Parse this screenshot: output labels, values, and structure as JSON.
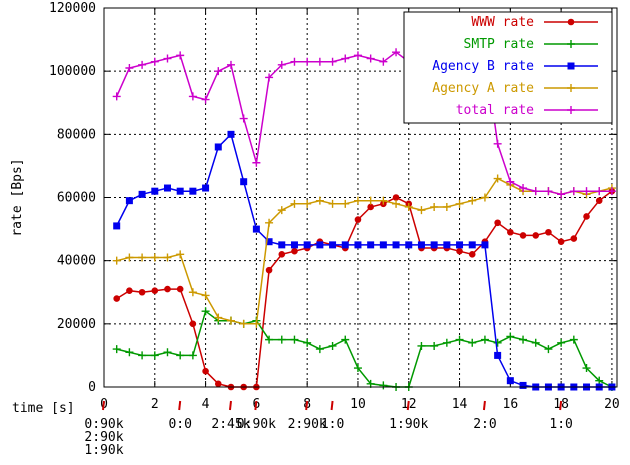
{
  "chart_data": {
    "type": "line",
    "xlabel": "time [s]",
    "ylabel": "rate [Bps]",
    "xlim": [
      0,
      20.2
    ],
    "ylim": [
      0,
      120000
    ],
    "x_ticks": [
      0,
      2,
      4,
      6,
      8,
      10,
      12,
      14,
      16,
      18,
      20
    ],
    "y_ticks": [
      0,
      20000,
      40000,
      60000,
      80000,
      100000,
      120000
    ],
    "grid": true,
    "legend_position": "top-right",
    "series": [
      {
        "name": "WWW rate",
        "color": "#cc0000",
        "marker": "circle",
        "points": [
          [
            0.5,
            28000
          ],
          [
            1,
            30500
          ],
          [
            1.5,
            30000
          ],
          [
            2,
            30500
          ],
          [
            2.5,
            31000
          ],
          [
            3,
            31000
          ],
          [
            3.5,
            20000
          ],
          [
            4,
            5000
          ],
          [
            4.5,
            1000
          ],
          [
            5,
            0
          ],
          [
            5.5,
            0
          ],
          [
            6,
            0
          ],
          [
            6.5,
            37000
          ],
          [
            7,
            42000
          ],
          [
            7.5,
            43000
          ],
          [
            8,
            44000
          ],
          [
            8.5,
            46000
          ],
          [
            9,
            45000
          ],
          [
            9.5,
            44000
          ],
          [
            10,
            53000
          ],
          [
            10.5,
            57000
          ],
          [
            11,
            58000
          ],
          [
            11.5,
            60000
          ],
          [
            12,
            58000
          ],
          [
            12.5,
            44000
          ],
          [
            13,
            44000
          ],
          [
            13.5,
            44000
          ],
          [
            14,
            43000
          ],
          [
            14.5,
            42000
          ],
          [
            15,
            46000
          ],
          [
            15.5,
            52000
          ],
          [
            16,
            49000
          ],
          [
            16.5,
            48000
          ],
          [
            17,
            48000
          ],
          [
            17.5,
            49000
          ],
          [
            18,
            46000
          ],
          [
            18.5,
            47000
          ],
          [
            19,
            54000
          ],
          [
            19.5,
            59000
          ],
          [
            20,
            62000
          ]
        ]
      },
      {
        "name": "SMTP rate",
        "color": "#009900",
        "marker": "plus",
        "points": [
          [
            0.5,
            12000
          ],
          [
            1,
            11000
          ],
          [
            1.5,
            10000
          ],
          [
            2,
            10000
          ],
          [
            2.5,
            11000
          ],
          [
            3,
            10000
          ],
          [
            3.5,
            10000
          ],
          [
            4,
            24000
          ],
          [
            4.5,
            21000
          ],
          [
            5,
            21000
          ],
          [
            5.5,
            20000
          ],
          [
            6,
            21000
          ],
          [
            6.5,
            15000
          ],
          [
            7,
            15000
          ],
          [
            7.5,
            15000
          ],
          [
            8,
            14000
          ],
          [
            8.5,
            12000
          ],
          [
            9,
            13000
          ],
          [
            9.5,
            15000
          ],
          [
            10,
            6000
          ],
          [
            10.5,
            1000
          ],
          [
            11,
            500
          ],
          [
            11.5,
            0
          ],
          [
            12,
            0
          ],
          [
            12.5,
            13000
          ],
          [
            13,
            13000
          ],
          [
            13.5,
            14000
          ],
          [
            14,
            15000
          ],
          [
            14.5,
            14000
          ],
          [
            15,
            15000
          ],
          [
            15.5,
            14000
          ],
          [
            16,
            16000
          ],
          [
            16.5,
            15000
          ],
          [
            17,
            14000
          ],
          [
            17.5,
            12000
          ],
          [
            18,
            14000
          ],
          [
            18.5,
            15000
          ],
          [
            19,
            6000
          ],
          [
            19.5,
            2000
          ],
          [
            20,
            0
          ]
        ]
      },
      {
        "name": "Agency B rate",
        "color": "#0000ee",
        "marker": "square",
        "points": [
          [
            0.5,
            51000
          ],
          [
            1,
            59000
          ],
          [
            1.5,
            61000
          ],
          [
            2,
            62000
          ],
          [
            2.5,
            63000
          ],
          [
            3,
            62000
          ],
          [
            3.5,
            62000
          ],
          [
            4,
            63000
          ],
          [
            4.5,
            76000
          ],
          [
            5,
            80000
          ],
          [
            5.5,
            65000
          ],
          [
            6,
            50000
          ],
          [
            6.5,
            46000
          ],
          [
            7,
            45000
          ],
          [
            7.5,
            45000
          ],
          [
            8,
            45000
          ],
          [
            8.5,
            45000
          ],
          [
            9,
            45000
          ],
          [
            9.5,
            45000
          ],
          [
            10,
            45000
          ],
          [
            10.5,
            45000
          ],
          [
            11,
            45000
          ],
          [
            11.5,
            45000
          ],
          [
            12,
            45000
          ],
          [
            12.5,
            45000
          ],
          [
            13,
            45000
          ],
          [
            13.5,
            45000
          ],
          [
            14,
            45000
          ],
          [
            14.5,
            45000
          ],
          [
            15,
            45000
          ],
          [
            15.5,
            10000
          ],
          [
            16,
            2000
          ],
          [
            16.5,
            500
          ],
          [
            17,
            0
          ],
          [
            17.5,
            0
          ],
          [
            18,
            0
          ],
          [
            18.5,
            0
          ],
          [
            19,
            0
          ],
          [
            19.5,
            0
          ],
          [
            20,
            0
          ]
        ]
      },
      {
        "name": "Agency A rate",
        "color": "#cc9900",
        "marker": "plus",
        "points": [
          [
            0.5,
            40000
          ],
          [
            1,
            41000
          ],
          [
            1.5,
            41000
          ],
          [
            2,
            41000
          ],
          [
            2.5,
            41000
          ],
          [
            3,
            42000
          ],
          [
            3.5,
            30000
          ],
          [
            4,
            29000
          ],
          [
            4.5,
            22000
          ],
          [
            5,
            21000
          ],
          [
            5.5,
            20000
          ],
          [
            6,
            20000
          ],
          [
            6.5,
            52000
          ],
          [
            7,
            56000
          ],
          [
            7.5,
            58000
          ],
          [
            8,
            58000
          ],
          [
            8.5,
            59000
          ],
          [
            9,
            58000
          ],
          [
            9.5,
            58000
          ],
          [
            10,
            59000
          ],
          [
            10.5,
            59000
          ],
          [
            11,
            59000
          ],
          [
            11.5,
            58000
          ],
          [
            12,
            57000
          ],
          [
            12.5,
            56000
          ],
          [
            13,
            57000
          ],
          [
            13.5,
            57000
          ],
          [
            14,
            58000
          ],
          [
            14.5,
            59000
          ],
          [
            15,
            60000
          ],
          [
            15.5,
            66000
          ],
          [
            16,
            64000
          ],
          [
            16.5,
            62000
          ],
          [
            17,
            62000
          ],
          [
            17.5,
            62000
          ],
          [
            18,
            61000
          ],
          [
            18.5,
            62000
          ],
          [
            19,
            61000
          ],
          [
            19.5,
            62000
          ],
          [
            20,
            63000
          ]
        ]
      },
      {
        "name": "total rate",
        "color": "#cc00cc",
        "marker": "plus",
        "points": [
          [
            0.5,
            92000
          ],
          [
            1,
            101000
          ],
          [
            1.5,
            102000
          ],
          [
            2,
            103000
          ],
          [
            2.5,
            104000
          ],
          [
            3,
            105000
          ],
          [
            3.5,
            92000
          ],
          [
            4,
            91000
          ],
          [
            4.5,
            100000
          ],
          [
            5,
            102000
          ],
          [
            5.5,
            85000
          ],
          [
            6,
            71000
          ],
          [
            6.5,
            98000
          ],
          [
            7,
            102000
          ],
          [
            7.5,
            103000
          ],
          [
            8,
            103000
          ],
          [
            8.5,
            103000
          ],
          [
            9,
            103000
          ],
          [
            9.5,
            104000
          ],
          [
            10,
            105000
          ],
          [
            10.5,
            104000
          ],
          [
            11,
            103000
          ],
          [
            11.5,
            106000
          ],
          [
            12,
            103000
          ],
          [
            12.5,
            103000
          ],
          [
            13,
            103000
          ],
          [
            13.5,
            104000
          ],
          [
            14,
            104000
          ],
          [
            14.5,
            104000
          ],
          [
            15,
            106000
          ],
          [
            15.5,
            77000
          ],
          [
            16,
            65000
          ],
          [
            16.5,
            63000
          ],
          [
            17,
            62000
          ],
          [
            17.5,
            62000
          ],
          [
            18,
            61000
          ],
          [
            18.5,
            62000
          ],
          [
            19,
            62000
          ],
          [
            19.5,
            62000
          ],
          [
            20,
            62000
          ]
        ]
      }
    ],
    "events": [
      {
        "x": 0.0,
        "lines": [
          "0:90k",
          "2:90k",
          "1:90k"
        ]
      },
      {
        "x": 3.0,
        "lines": [
          "0:0"
        ]
      },
      {
        "x": 5.0,
        "lines": [
          "2:45k"
        ]
      },
      {
        "x": 6.0,
        "lines": [
          "0:90k"
        ]
      },
      {
        "x": 8.0,
        "lines": [
          "2:90k"
        ]
      },
      {
        "x": 9.0,
        "lines": [
          "1:0"
        ]
      },
      {
        "x": 12.0,
        "lines": [
          "1:90k"
        ]
      },
      {
        "x": 15.0,
        "lines": [
          "2:0"
        ]
      },
      {
        "x": 18.0,
        "lines": [
          "1:0"
        ]
      }
    ]
  }
}
